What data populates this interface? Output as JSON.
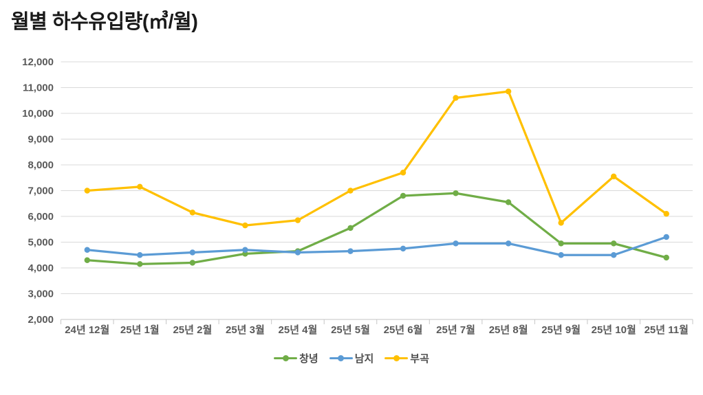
{
  "title": "월별 하수유입량(㎥/월)",
  "chart_data": {
    "type": "line",
    "title": "월별 하수유입량(㎥/월)",
    "xlabel": "",
    "ylabel": "",
    "categories": [
      "24년 12월",
      "25년 1월",
      "25년 2월",
      "25년 3월",
      "25년 4월",
      "25년 5월",
      "25년 6월",
      "25년 7월",
      "25년 8월",
      "25년 9월",
      "25년 10월",
      "25년 11월"
    ],
    "series": [
      {
        "id": "changnyeong",
        "name": "창녕",
        "color": "#70AD47",
        "values": [
          4300,
          4150,
          4200,
          4550,
          4650,
          5550,
          6800,
          6900,
          6550,
          4950,
          4950,
          4400
        ]
      },
      {
        "id": "namji",
        "name": "남지",
        "color": "#5B9BD5",
        "values": [
          4700,
          4500,
          4600,
          4700,
          4600,
          4650,
          4750,
          4950,
          4950,
          4500,
          4500,
          5200
        ]
      },
      {
        "id": "bugok",
        "name": "부곡",
        "color": "#FFC000",
        "values": [
          7000,
          7150,
          6150,
          5650,
          5850,
          7000,
          7700,
          10600,
          10850,
          5750,
          7550,
          6100
        ]
      }
    ],
    "ylim": [
      2000,
      12000
    ],
    "ytick_step": 1000,
    "ytick_labels": [
      "2,000",
      "3,000",
      "4,000",
      "5,000",
      "6,000",
      "7,000",
      "8,000",
      "9,000",
      "10,000",
      "11,000",
      "12,000"
    ],
    "grid": "horizontal",
    "legend_position": "bottom"
  },
  "colors": {
    "grid": "#D9D9D9",
    "axis": "#C6C6C6",
    "axis_text": "#595959",
    "title_text": "#1A1A1A"
  }
}
